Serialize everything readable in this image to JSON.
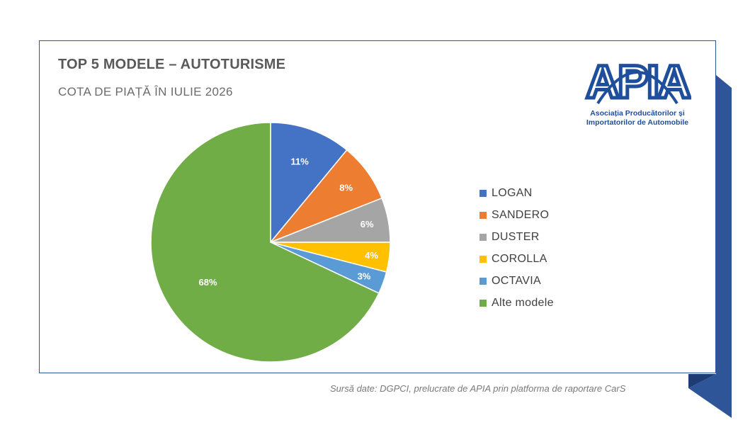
{
  "title": "TOP 5 MODELE – AUTOTURISME",
  "subtitle": "COTA DE PIAȚĂ ÎN IULIE 2026",
  "logo": {
    "mark": "APIA",
    "line1": "Asociația Producătorilor și",
    "line2": "Importatorilor de Automobile"
  },
  "source": "Sursă date: DGPCI, prelucrate de APIA prin platforma de raportare CarS",
  "colors": {
    "ribbon": "#2e5597",
    "ribbon_dark": "#1e3c73",
    "card_border": "#2e5597",
    "logo": "#1f4e9b"
  },
  "chart_data": {
    "type": "pie",
    "title": "TOP 5 MODELE – AUTOTURISME",
    "subtitle": "COTA DE PIAȚĂ ÎN IULIE 2026",
    "legend_position": "right",
    "slices": [
      {
        "label": "LOGAN",
        "value": 11,
        "display": "11%",
        "color": "#4472c4"
      },
      {
        "label": "SANDERO",
        "value": 8,
        "display": "8%",
        "color": "#ed7d31"
      },
      {
        "label": "DUSTER",
        "value": 6,
        "display": "6%",
        "color": "#a5a5a5"
      },
      {
        "label": "COROLLA",
        "value": 4,
        "display": "4%",
        "color": "#ffc000"
      },
      {
        "label": "OCTAVIA",
        "value": 3,
        "display": "3%",
        "color": "#5b9bd5"
      },
      {
        "label": "Alte modele",
        "value": 68,
        "display": "68%",
        "color": "#70ad47"
      }
    ]
  }
}
